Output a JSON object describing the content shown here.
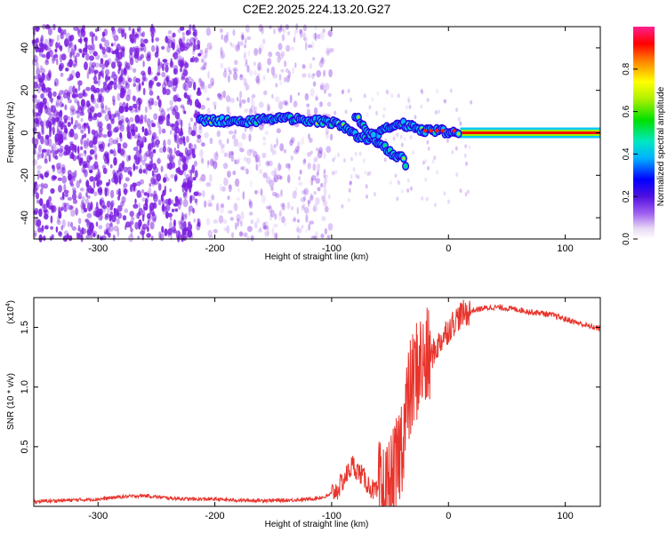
{
  "title": "C2E2.2025.224.13.20.G27",
  "colors": {
    "snr_line": "#e8342c",
    "axes": "#000000",
    "noise": "#7b1fe0"
  },
  "chart_data": [
    {
      "type": "heatmap",
      "xlabel": "Height of straight line (km)",
      "ylabel": "Frequency (Hz)",
      "xlim": [
        -355,
        130
      ],
      "ylim": [
        -50,
        50
      ],
      "x_ticks": [
        -300,
        -200,
        -100,
        0,
        100
      ],
      "x_tick_labels": [
        "-300",
        "-200",
        "-100",
        "0",
        "100"
      ],
      "y_ticks": [
        -40,
        -20,
        0,
        20,
        40
      ],
      "y_tick_labels": [
        "-40",
        "-20",
        "0",
        "20",
        "40"
      ],
      "colorbar": {
        "label": "Normalized spectral amplitude",
        "colormap": "rainbow",
        "range": [
          0,
          1
        ],
        "ticks": [
          0.0,
          0.2,
          0.4,
          0.6,
          0.8
        ],
        "tick_labels": [
          "0.0",
          "0.2",
          "0.4",
          "0.6",
          "0.8"
        ]
      },
      "main_track": [
        {
          "x": -213,
          "y": 6
        },
        {
          "x": -200,
          "y": 6
        },
        {
          "x": -180,
          "y": 5
        },
        {
          "x": -160,
          "y": 6
        },
        {
          "x": -140,
          "y": 7
        },
        {
          "x": -120,
          "y": 6
        },
        {
          "x": -100,
          "y": 5
        },
        {
          "x": -90,
          "y": 3
        },
        {
          "x": -80,
          "y": -1
        },
        {
          "x": -70,
          "y": -3
        },
        {
          "x": -60,
          "y": 0
        },
        {
          "x": -50,
          "y": 3
        },
        {
          "x": -40,
          "y": 4
        },
        {
          "x": -30,
          "y": 3
        },
        {
          "x": -20,
          "y": 1
        },
        {
          "x": -10,
          "y": 1
        },
        {
          "x": 0,
          "y": 0.5
        },
        {
          "x": 10,
          "y": 0
        },
        {
          "x": 130,
          "y": 0
        }
      ],
      "branch_track": [
        {
          "x": -80,
          "y": 8
        },
        {
          "x": -70,
          "y": 2
        },
        {
          "x": -60,
          "y": -5
        },
        {
          "x": -50,
          "y": -9
        },
        {
          "x": -40,
          "y": -12
        },
        {
          "x": -35,
          "y": -16
        }
      ],
      "noise_region_x": [
        -355,
        -100
      ]
    },
    {
      "type": "line",
      "xlabel": "Height of straight line (km)",
      "ylabel": "SNR (10 * v/v)",
      "scale_label_prefix": "(x10",
      "scale_label_exp": "4",
      "scale_label_suffix": ")",
      "xlim": [
        -355,
        130
      ],
      "ylim": [
        0,
        1.75
      ],
      "x_ticks": [
        -300,
        -200,
        -100,
        0,
        100
      ],
      "x_tick_labels": [
        "-300",
        "-200",
        "-100",
        "0",
        "100"
      ],
      "y_ticks": [
        0.5,
        1.0,
        1.5
      ],
      "y_tick_labels": [
        "0.5",
        "1.0",
        "1.5"
      ],
      "series": [
        {
          "x": [
            -355,
            -330,
            -300,
            -280,
            -260,
            -240,
            -220,
            -200,
            -180,
            -160,
            -140,
            -120,
            -105,
            -95,
            -88,
            -82,
            -78,
            -74,
            -70,
            -66,
            -62,
            -58,
            -55,
            -52,
            -48,
            -45,
            -42,
            -39,
            -36,
            -33,
            -30,
            -27,
            -24,
            -21,
            -18,
            -15,
            -12,
            -9,
            -6,
            -3,
            0,
            5,
            10,
            15,
            20,
            25,
            30,
            40,
            50,
            60,
            70,
            80,
            90,
            100,
            110,
            120,
            130
          ],
          "y": [
            0.04,
            0.05,
            0.06,
            0.08,
            0.09,
            0.07,
            0.06,
            0.06,
            0.05,
            0.05,
            0.05,
            0.06,
            0.08,
            0.14,
            0.25,
            0.35,
            0.3,
            0.26,
            0.2,
            0.15,
            0.12,
            0.1,
            0.1,
            0.12,
            0.18,
            0.28,
            0.45,
            0.6,
            0.8,
            0.95,
            1.05,
            1.15,
            1.2,
            1.18,
            1.22,
            1.25,
            1.3,
            1.35,
            1.4,
            1.45,
            1.48,
            1.55,
            1.6,
            1.62,
            1.64,
            1.65,
            1.66,
            1.67,
            1.66,
            1.65,
            1.63,
            1.62,
            1.6,
            1.57,
            1.54,
            1.51,
            1.49
          ]
        }
      ]
    }
  ]
}
